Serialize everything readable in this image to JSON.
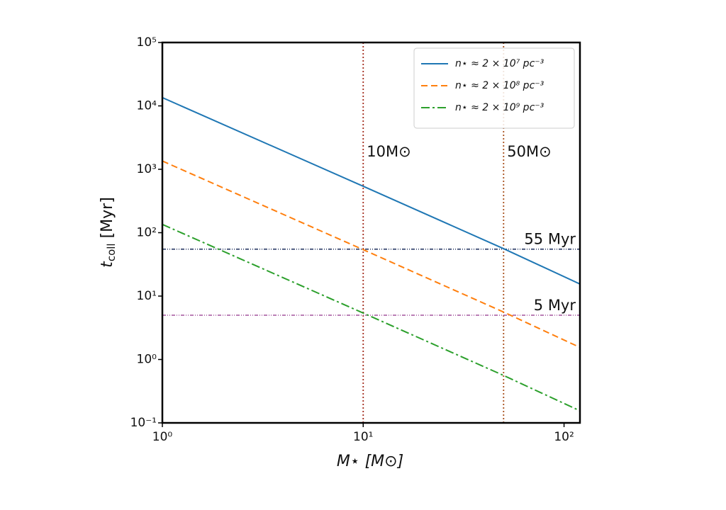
{
  "chart_data": {
    "type": "line",
    "xlabel": "M⋆ [M⊙]",
    "ylabel": [
      "t",
      "coll",
      " [Myr]"
    ],
    "x": [
      1,
      10,
      50,
      120
    ],
    "series": [
      {
        "name": "n⋆ ≈ 2 × 10⁷ pc⁻³",
        "color": "#1f77b4",
        "dash": "solid",
        "values": [
          13500,
          540,
          56,
          15.5
        ]
      },
      {
        "name": "n⋆ ≈ 2 × 10⁸ pc⁻³",
        "color": "#ff7f0e",
        "dash": "dashed",
        "values": [
          1350,
          54,
          5.6,
          1.55
        ]
      },
      {
        "name": "n⋆ ≈ 2 × 10⁹ pc⁻³",
        "color": "#2ca02c",
        "dash": "dashdot",
        "values": [
          135,
          5.4,
          0.56,
          0.155
        ]
      }
    ],
    "vlines": [
      {
        "x": 10,
        "label": "10M⊙",
        "color": "#a32a1c"
      },
      {
        "x": 50,
        "label": "50M⊙",
        "color": "#a8501c"
      }
    ],
    "hlines": [
      {
        "y": 55,
        "label": "55 Myr",
        "color": "#1c2e5c"
      },
      {
        "y": 5,
        "label": "5 Myr",
        "color": "#a4549e"
      }
    ],
    "xscale": "log",
    "yscale": "log",
    "xlim": [
      1,
      120
    ],
    "ylim": [
      0.1,
      100000
    ],
    "xticks": [
      {
        "value": 1,
        "label": "10⁰"
      },
      {
        "value": 10,
        "label": "10¹"
      },
      {
        "value": 100,
        "label": "10²"
      }
    ],
    "yticks": [
      {
        "value": 0.1,
        "label": "10⁻¹"
      },
      {
        "value": 1,
        "label": "10⁰"
      },
      {
        "value": 10,
        "label": "10¹"
      },
      {
        "value": 100,
        "label": "10²"
      },
      {
        "value": 1000,
        "label": "10³"
      },
      {
        "value": 10000,
        "label": "10⁴"
      },
      {
        "value": 100000,
        "label": "10⁵"
      }
    ],
    "legend": "upper right"
  }
}
